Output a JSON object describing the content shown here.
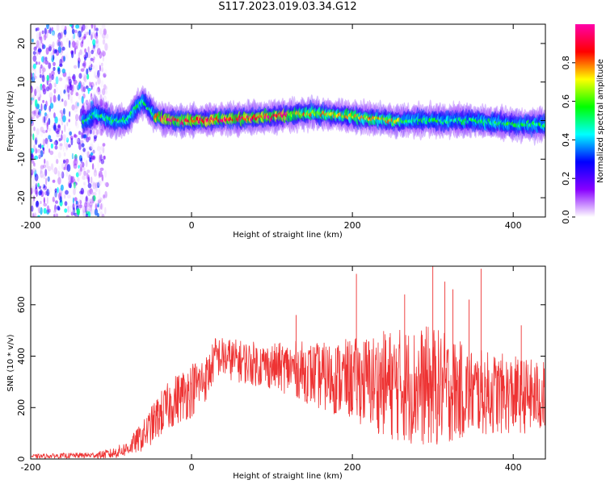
{
  "title": "S117.2023.019.03.34.G12",
  "chart_data": [
    {
      "type": "heatmap",
      "xlabel": "Height of straight line (km)",
      "ylabel": "Frequency (Hz)",
      "xlim": [
        -200,
        440
      ],
      "ylim": [
        -25,
        25
      ],
      "xticks": [
        -200,
        0,
        200,
        400
      ],
      "yticks": [
        20,
        10,
        0,
        -10,
        -20
      ],
      "colorbar": {
        "label": "Normalized spectral amplitude",
        "range": [
          0.0,
          1.0
        ],
        "ticks": [
          0.0,
          0.2,
          0.4,
          0.6,
          0.8
        ],
        "colors": [
          "#ffffff",
          "#8800ff",
          "#0000ff",
          "#00ffff",
          "#00ff00",
          "#ffff00",
          "#ff0000",
          "#ff00aa"
        ]
      },
      "ridge": {
        "x": [
          -200,
          -130,
          -120,
          -100,
          -80,
          -70,
          -60,
          -45,
          -20,
          0,
          50,
          100,
          150,
          200,
          250,
          300,
          350,
          400,
          440
        ],
        "y": [
          0,
          0,
          2,
          0,
          0,
          3,
          5,
          1,
          0,
          0,
          0.5,
          1,
          2,
          1,
          0,
          0,
          0,
          -1,
          -1
        ]
      },
      "noise_region_x": [
        -200,
        -115
      ]
    },
    {
      "type": "line",
      "xlabel": "Height of straight line (km)",
      "ylabel": "SNR (10 * v/v)",
      "xlim": [
        -200,
        440
      ],
      "ylim": [
        0,
        750
      ],
      "xticks": [
        -200,
        0,
        200,
        400
      ],
      "yticks": [
        0,
        200,
        400,
        600
      ],
      "color": "#ee3333",
      "envelope": {
        "x": [
          -200,
          -120,
          -100,
          -80,
          -60,
          -40,
          -20,
          0,
          20,
          30,
          60,
          100,
          130,
          160,
          200,
          250,
          300,
          350,
          400,
          440
        ],
        "y": [
          10,
          15,
          20,
          40,
          90,
          170,
          230,
          270,
          320,
          400,
          380,
          360,
          350,
          320,
          310,
          290,
          280,
          260,
          250,
          240
        ]
      },
      "spread": {
        "x": [
          -200,
          -120,
          -80,
          -40,
          0,
          30,
          100,
          200,
          250,
          300,
          350,
          440
        ],
        "y": [
          8,
          12,
          30,
          90,
          110,
          80,
          90,
          160,
          220,
          240,
          170,
          140
        ]
      },
      "peaks": [
        {
          "x": 300,
          "y": 750
        },
        {
          "x": 360,
          "y": 740
        },
        {
          "x": 205,
          "y": 720
        },
        {
          "x": 315,
          "y": 690
        },
        {
          "x": 325,
          "y": 660
        },
        {
          "x": 265,
          "y": 640
        },
        {
          "x": 345,
          "y": 620
        },
        {
          "x": 130,
          "y": 560
        },
        {
          "x": 410,
          "y": 520
        }
      ]
    }
  ]
}
